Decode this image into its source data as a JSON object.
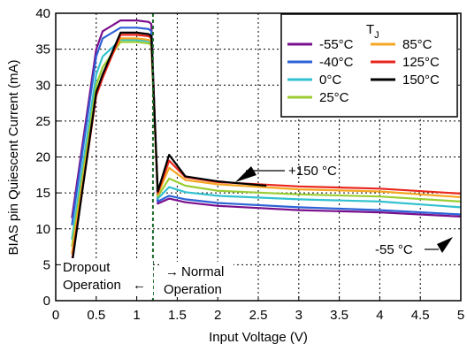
{
  "chart_data": {
    "type": "line",
    "xlabel": "Input Voltage (V)",
    "ylabel": "BIAS pin Quiescent Current (mA)",
    "xlim": [
      0,
      5
    ],
    "ylim": [
      0,
      40
    ],
    "xticks": [
      0,
      0.5,
      1,
      1.5,
      2,
      2.5,
      3,
      3.5,
      4,
      4.5,
      5
    ],
    "yticks": [
      0,
      5,
      10,
      15,
      20,
      25,
      30,
      35,
      40
    ],
    "xtick_labels": [
      "0",
      "0.5",
      "1",
      "1.5",
      "2",
      "2.5",
      "3",
      "3.5",
      "4",
      "4.5",
      "5"
    ],
    "ytick_labels": [
      "0",
      "5",
      "10",
      "15",
      "20",
      "25",
      "30",
      "35",
      "40"
    ],
    "grid": true,
    "legend": {
      "title": "T",
      "title_sub": "J",
      "position": "top-right",
      "columns": 2
    },
    "dropout_line_x": 1.2,
    "series": [
      {
        "name": "-55°C",
        "color": "#7a0f8c",
        "x": [
          0.2,
          0.5,
          0.58,
          0.8,
          1.0,
          1.15,
          1.18,
          1.26,
          1.4,
          1.6,
          2.0,
          3.0,
          4.0,
          5.0
        ],
        "y": [
          11.5,
          35,
          37.5,
          39,
          39,
          38.8,
          38.5,
          13.5,
          14.2,
          13.7,
          13.2,
          12.6,
          12.3,
          11.7
        ]
      },
      {
        "name": "-40°C",
        "color": "#2d63d6",
        "x": [
          0.2,
          0.5,
          0.58,
          0.8,
          1.0,
          1.15,
          1.18,
          1.26,
          1.4,
          1.6,
          2.0,
          3.0,
          4.0,
          5.0
        ],
        "y": [
          10.5,
          34,
          36.5,
          38,
          38,
          37.8,
          37.5,
          13.8,
          14.6,
          14.1,
          13.6,
          13.0,
          12.6,
          12.0
        ]
      },
      {
        "name": "0°C",
        "color": "#33c1cf",
        "x": [
          0.2,
          0.5,
          0.58,
          0.8,
          1.0,
          1.15,
          1.18,
          1.26,
          1.4,
          1.6,
          2.0,
          3.0,
          4.0,
          5.0
        ],
        "y": [
          8.5,
          31.5,
          34,
          36.3,
          36.3,
          36.1,
          35.8,
          14.2,
          15.8,
          15.1,
          14.6,
          14.1,
          13.8,
          13.0
        ]
      },
      {
        "name": "25°C",
        "color": "#9acd32",
        "x": [
          0.2,
          0.5,
          0.58,
          0.8,
          1.0,
          1.15,
          1.18,
          1.26,
          1.4,
          1.6,
          2.0,
          3.0,
          4.0,
          5.0
        ],
        "y": [
          7.5,
          30,
          32.5,
          36,
          36,
          35.8,
          35.5,
          14.5,
          17,
          16,
          15.3,
          14.8,
          14.5,
          13.8
        ]
      },
      {
        "name": "85°C",
        "color": "#f5a623",
        "x": [
          0.2,
          0.5,
          0.58,
          0.8,
          1.0,
          1.15,
          1.18,
          1.26,
          1.4,
          1.6,
          2.0,
          3.0,
          4.0,
          5.0
        ],
        "y": [
          6.5,
          29,
          31.5,
          36.5,
          36.5,
          36.3,
          36,
          14.8,
          18.5,
          16.8,
          16.2,
          15.5,
          15.2,
          14.4
        ]
      },
      {
        "name": "125°C",
        "color": "#e8261c",
        "x": [
          0.2,
          0.5,
          0.58,
          0.8,
          1.0,
          1.15,
          1.18,
          1.26,
          1.4,
          1.6,
          2.0,
          3.0,
          4.0,
          5.0
        ],
        "y": [
          5.5,
          28.5,
          31,
          37,
          37,
          36.8,
          36.5,
          15,
          19.5,
          17.2,
          16.5,
          15.9,
          15.6,
          14.9
        ]
      },
      {
        "name": "150°C",
        "color": "#000000",
        "x": [
          0.2,
          0.5,
          0.58,
          0.8,
          1.0,
          1.15,
          1.18,
          1.26,
          1.4,
          1.6,
          2.0,
          2.6
        ],
        "y": [
          5.0,
          29,
          31.5,
          37.3,
          37.3,
          37.1,
          36.8,
          15.2,
          20.3,
          17.3,
          16.6,
          16.0
        ]
      }
    ],
    "annotations": [
      {
        "text": "+150 °C"
      },
      {
        "text": "-55 °C"
      },
      {
        "text": "Dropout"
      },
      {
        "text": "Operation"
      },
      {
        "text": "Normal"
      },
      {
        "text": "Operation"
      }
    ]
  }
}
